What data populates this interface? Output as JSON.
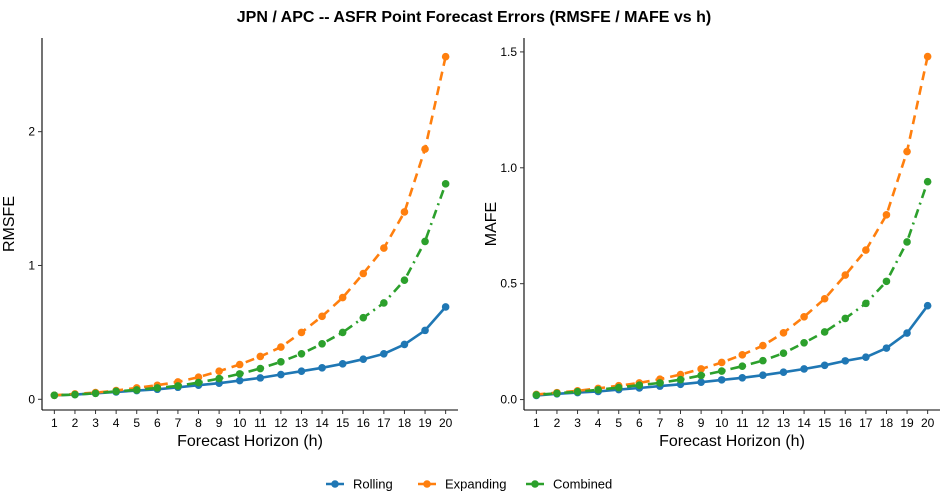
{
  "title": "JPN / APC -- ASFR Point Forecast Errors (RMSFE / MAFE vs h)",
  "colors": {
    "Rolling": "#1f77b4",
    "Expanding": "#ff7f0e",
    "Combined": "#2ca02c"
  },
  "legend": {
    "position": "bottom",
    "items": [
      "Rolling",
      "Expanding",
      "Combined"
    ]
  },
  "chart_data": [
    {
      "type": "line",
      "xlabel": "Forecast Horizon (h)",
      "ylabel": "RMSFE",
      "x": [
        1,
        2,
        3,
        4,
        5,
        6,
        7,
        8,
        9,
        10,
        11,
        12,
        13,
        14,
        15,
        16,
        17,
        18,
        19,
        20
      ],
      "xticks": [
        "1",
        "2",
        "3",
        "4",
        "5",
        "6",
        "7",
        "8",
        "9",
        "10",
        "11",
        "12",
        "13",
        "14",
        "15",
        "16",
        "17",
        "18",
        "19",
        "20"
      ],
      "yticks": [
        0,
        1,
        2
      ],
      "ytick_labels": [
        "0",
        "1",
        "2"
      ],
      "ylim": [
        -0.08,
        2.7
      ],
      "grid": false,
      "series": [
        {
          "name": "Rolling",
          "line_style": "solid",
          "values": [
            0.03,
            0.035,
            0.045,
            0.055,
            0.065,
            0.075,
            0.09,
            0.105,
            0.12,
            0.14,
            0.16,
            0.185,
            0.21,
            0.235,
            0.265,
            0.3,
            0.34,
            0.41,
            0.515,
            0.69
          ]
        },
        {
          "name": "Expanding",
          "line_style": "dashed",
          "values": [
            0.03,
            0.04,
            0.05,
            0.065,
            0.085,
            0.105,
            0.13,
            0.165,
            0.21,
            0.26,
            0.32,
            0.39,
            0.5,
            0.62,
            0.76,
            0.94,
            1.13,
            1.4,
            1.87,
            2.56
          ]
        },
        {
          "name": "Combined",
          "line_style": "dotdash",
          "values": [
            0.03,
            0.035,
            0.045,
            0.06,
            0.07,
            0.085,
            0.1,
            0.125,
            0.155,
            0.19,
            0.23,
            0.28,
            0.34,
            0.415,
            0.5,
            0.61,
            0.72,
            0.89,
            1.18,
            1.61
          ]
        }
      ]
    },
    {
      "type": "line",
      "xlabel": "Forecast Horizon (h)",
      "ylabel": "MAFE",
      "x": [
        1,
        2,
        3,
        4,
        5,
        6,
        7,
        8,
        9,
        10,
        11,
        12,
        13,
        14,
        15,
        16,
        17,
        18,
        19,
        20
      ],
      "xticks": [
        "1",
        "2",
        "3",
        "4",
        "5",
        "6",
        "7",
        "8",
        "9",
        "10",
        "11",
        "12",
        "13",
        "14",
        "15",
        "16",
        "17",
        "18",
        "19",
        "20"
      ],
      "yticks": [
        0,
        0.5,
        1,
        1.5
      ],
      "ytick_labels": [
        "0.0",
        "0.5",
        "1.0",
        "1.5"
      ],
      "ylim": [
        -0.045,
        1.56
      ],
      "grid": false,
      "series": [
        {
          "name": "Rolling",
          "line_style": "solid",
          "values": [
            0.018,
            0.025,
            0.03,
            0.035,
            0.043,
            0.05,
            0.058,
            0.066,
            0.075,
            0.085,
            0.094,
            0.105,
            0.118,
            0.132,
            0.148,
            0.167,
            0.183,
            0.222,
            0.287,
            0.405
          ]
        },
        {
          "name": "Expanding",
          "line_style": "dashed",
          "values": [
            0.022,
            0.03,
            0.038,
            0.048,
            0.06,
            0.072,
            0.088,
            0.108,
            0.132,
            0.16,
            0.193,
            0.233,
            0.288,
            0.357,
            0.435,
            0.537,
            0.645,
            0.797,
            1.07,
            1.48
          ]
        },
        {
          "name": "Combined",
          "line_style": "dotdash",
          "values": [
            0.02,
            0.027,
            0.034,
            0.042,
            0.052,
            0.062,
            0.072,
            0.086,
            0.104,
            0.123,
            0.144,
            0.168,
            0.2,
            0.245,
            0.292,
            0.35,
            0.415,
            0.51,
            0.68,
            0.94
          ]
        }
      ]
    }
  ]
}
